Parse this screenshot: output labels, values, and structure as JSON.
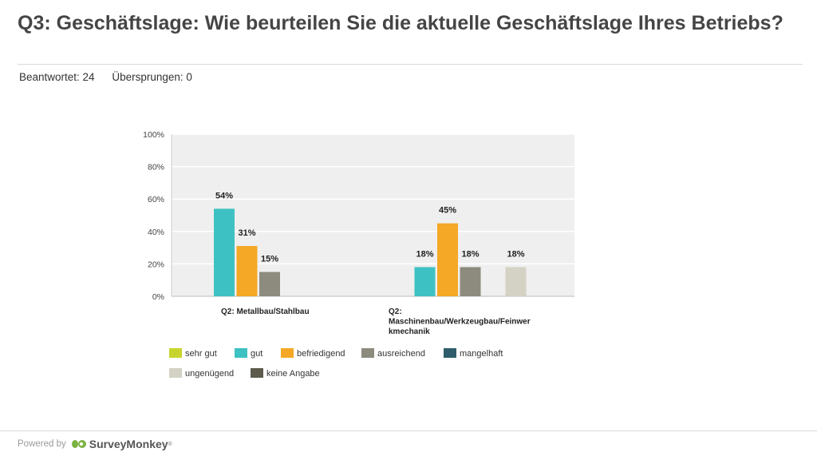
{
  "page": {
    "title": "Q3: Geschäftslage: Wie beurteilen Sie die aktuelle Geschäftslage Ihres Betriebs?",
    "answered": "Beantwortet: 24",
    "skipped": "Übersprungen: 0"
  },
  "footer": {
    "powered_by": "Powered by",
    "brand": "SurveyMonkey",
    "trademark": "®"
  },
  "chart_data": {
    "type": "bar",
    "title": "",
    "xlabel": "",
    "ylabel": "",
    "ylim": [
      0,
      100
    ],
    "yticks": [
      0,
      20,
      40,
      60,
      80,
      100
    ],
    "ytick_labels": [
      "0%",
      "20%",
      "40%",
      "60%",
      "80%",
      "100%"
    ],
    "categories": [
      [
        "Q2: Metallbau/Stahlbau"
      ],
      [
        "Q2:",
        "Maschinenbau/Werkzeugbau/Feinwer",
        "kmechanik"
      ]
    ],
    "series": [
      {
        "name": "sehr gut",
        "color": "#c8d42e",
        "values": [
          0,
          0
        ]
      },
      {
        "name": "gut",
        "color": "#3ec1c2",
        "values": [
          54,
          18
        ]
      },
      {
        "name": "befriedigend",
        "color": "#f4a825",
        "values": [
          31,
          45
        ]
      },
      {
        "name": "ausreichend",
        "color": "#8c8b7d",
        "values": [
          15,
          18
        ]
      },
      {
        "name": "mangelhaft",
        "color": "#2f5d6b",
        "values": [
          0,
          0
        ]
      },
      {
        "name": "ungenügend",
        "color": "#d4d2c4",
        "values": [
          0,
          18
        ]
      },
      {
        "name": "keine Angabe",
        "color": "#5c5b4c",
        "values": [
          0,
          0
        ]
      }
    ],
    "data_labels": [
      [
        "",
        "54%",
        "31%",
        "15%",
        "",
        "",
        ""
      ],
      [
        "",
        "18%",
        "45%",
        "18%",
        "",
        "18%",
        ""
      ]
    ],
    "grid": true,
    "legend_position": "bottom"
  }
}
